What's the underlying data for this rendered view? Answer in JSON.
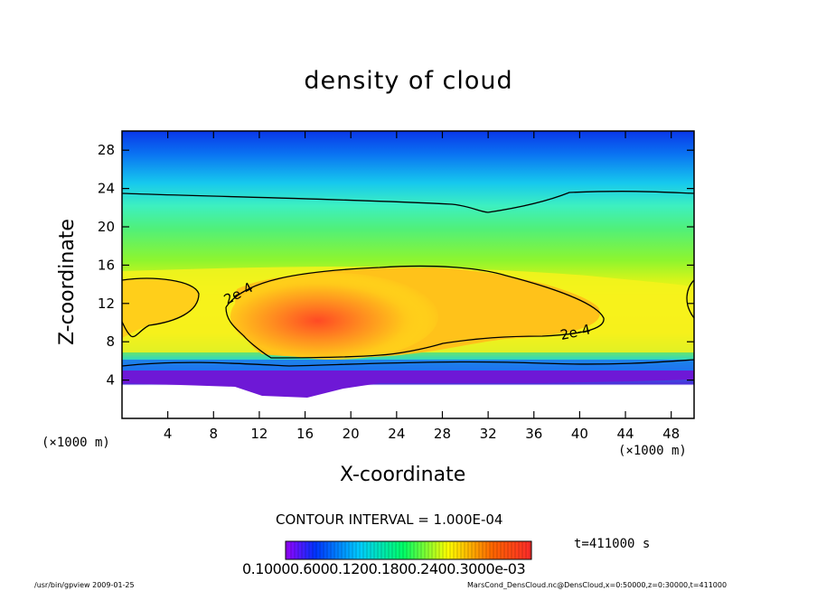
{
  "chart_data": {
    "type": "heatmap",
    "title": "density of cloud",
    "xlabel": "X-coordinate",
    "ylabel": "Z-coordinate",
    "x_unit": "(×1000 m)",
    "y_unit": "(×1000 m)",
    "xlim": [
      0,
      50
    ],
    "ylim": [
      0,
      30
    ],
    "xticks": [
      4,
      8,
      12,
      16,
      20,
      24,
      28,
      32,
      36,
      40,
      44,
      48
    ],
    "yticks": [
      4,
      8,
      12,
      16,
      20,
      24,
      28
    ],
    "contour_labels": [
      "2e-4",
      "2e-4"
    ],
    "contour_interval": "CONTOUR INTERVAL = 1.000E-04",
    "time": "t=411000 s",
    "colorbar_labels": "0.10000.6000.1200.1800.2400.3000e-03",
    "colormap": [
      "#9a00ff",
      "#0033ff",
      "#00ccff",
      "#00ff66",
      "#ffff00",
      "#ff6600",
      "#ff2a2a"
    ]
  },
  "footer": {
    "left": "/usr/bin/gpview   2009-01-25",
    "right": "MarsCond_DensCloud.nc@DensCloud,x=0:50000,z=0:30000,t=411000"
  }
}
